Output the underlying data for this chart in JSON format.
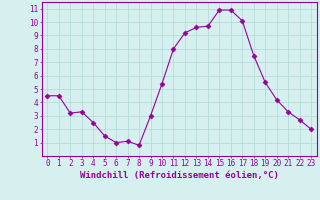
{
  "x": [
    0,
    1,
    2,
    3,
    4,
    5,
    6,
    7,
    8,
    9,
    10,
    11,
    12,
    13,
    14,
    15,
    16,
    17,
    18,
    19,
    20,
    21,
    22,
    23
  ],
  "y": [
    4.5,
    4.5,
    3.2,
    3.3,
    2.5,
    1.5,
    1.0,
    1.1,
    0.8,
    3.0,
    5.4,
    8.0,
    9.2,
    9.6,
    9.7,
    10.9,
    10.9,
    10.1,
    7.5,
    5.5,
    4.2,
    3.3,
    2.7,
    2.0
  ],
  "line_color": "#990099",
  "marker": "D",
  "marker_size": 2.5,
  "bg_color": "#d6f0f0",
  "grid_color": "#b0d8d8",
  "xlabel": "Windchill (Refroidissement éolien,°C)",
  "ylabel": "",
  "title": "",
  "xlim": [
    -0.5,
    23.5
  ],
  "ylim": [
    0.0,
    11.5
  ],
  "yticks": [
    1,
    2,
    3,
    4,
    5,
    6,
    7,
    8,
    9,
    10,
    11
  ],
  "xticks": [
    0,
    1,
    2,
    3,
    4,
    5,
    6,
    7,
    8,
    9,
    10,
    11,
    12,
    13,
    14,
    15,
    16,
    17,
    18,
    19,
    20,
    21,
    22,
    23
  ],
  "tick_label_fontsize": 5.5,
  "xlabel_fontsize": 6.5,
  "spine_color": "#990099",
  "axis_bg_color": "#d6f0f0"
}
